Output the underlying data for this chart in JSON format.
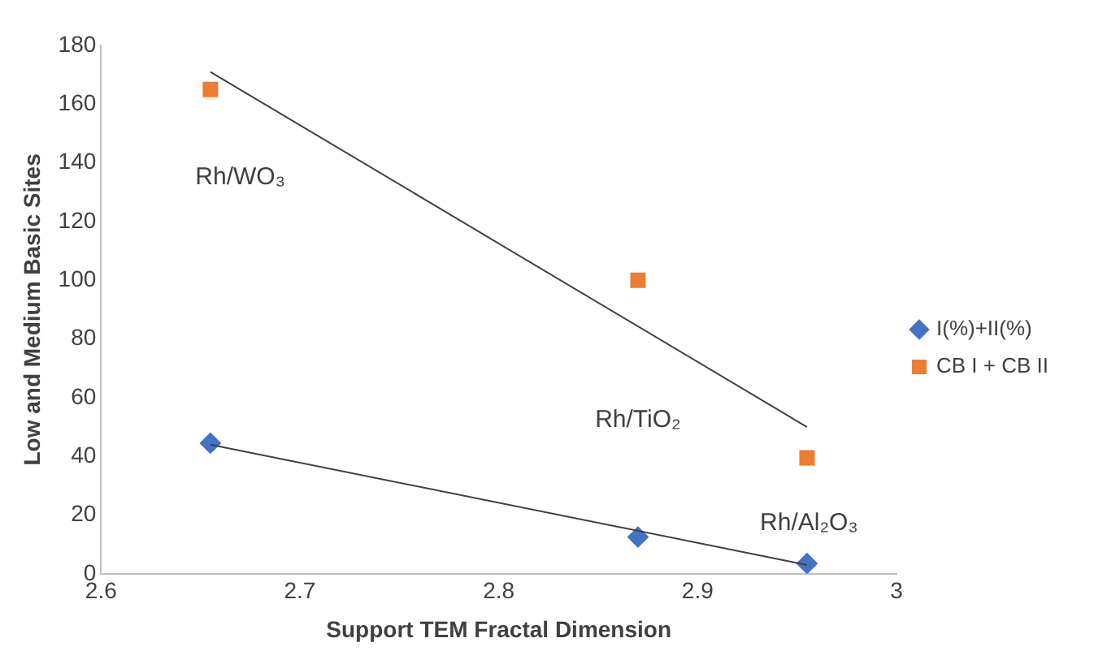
{
  "chart_data": {
    "type": "scatter",
    "xlabel": "Support TEM Fractal Dimension",
    "ylabel": "Low and Medium Basic Sites",
    "xlim": [
      2.6,
      3
    ],
    "xticks": [
      2.6,
      2.7,
      2.8,
      2.9,
      3
    ],
    "ylim": [
      0,
      180
    ],
    "yticks": [
      0,
      20,
      40,
      60,
      80,
      100,
      120,
      140,
      160,
      180
    ],
    "grid": false,
    "legend": "right",
    "series": [
      {
        "name": "I(%)+II(%)",
        "color": "#4472c4",
        "marker": "diamond",
        "x": [
          2.655,
          2.87,
          2.955
        ],
        "values": [
          44.5,
          12.5,
          3.5
        ]
      },
      {
        "name": "CB I + CB II",
        "color": "#ed7d31",
        "marker": "square",
        "x": [
          2.655,
          2.87,
          2.955
        ],
        "values": [
          165,
          100,
          39.5
        ]
      },
      {
        "type": "line",
        "color": "#404040",
        "marker": "none",
        "x": [
          2.655,
          2.955
        ],
        "values": [
          44,
          3
        ]
      },
      {
        "type": "line",
        "color": "#404040",
        "marker": "none",
        "x": [
          2.655,
          2.955
        ],
        "values": [
          171,
          50
        ]
      }
    ],
    "annotations": [
      "Rh/WO₃",
      "Rh/TiO₂",
      "Rh/Al₂O₃"
    ]
  }
}
